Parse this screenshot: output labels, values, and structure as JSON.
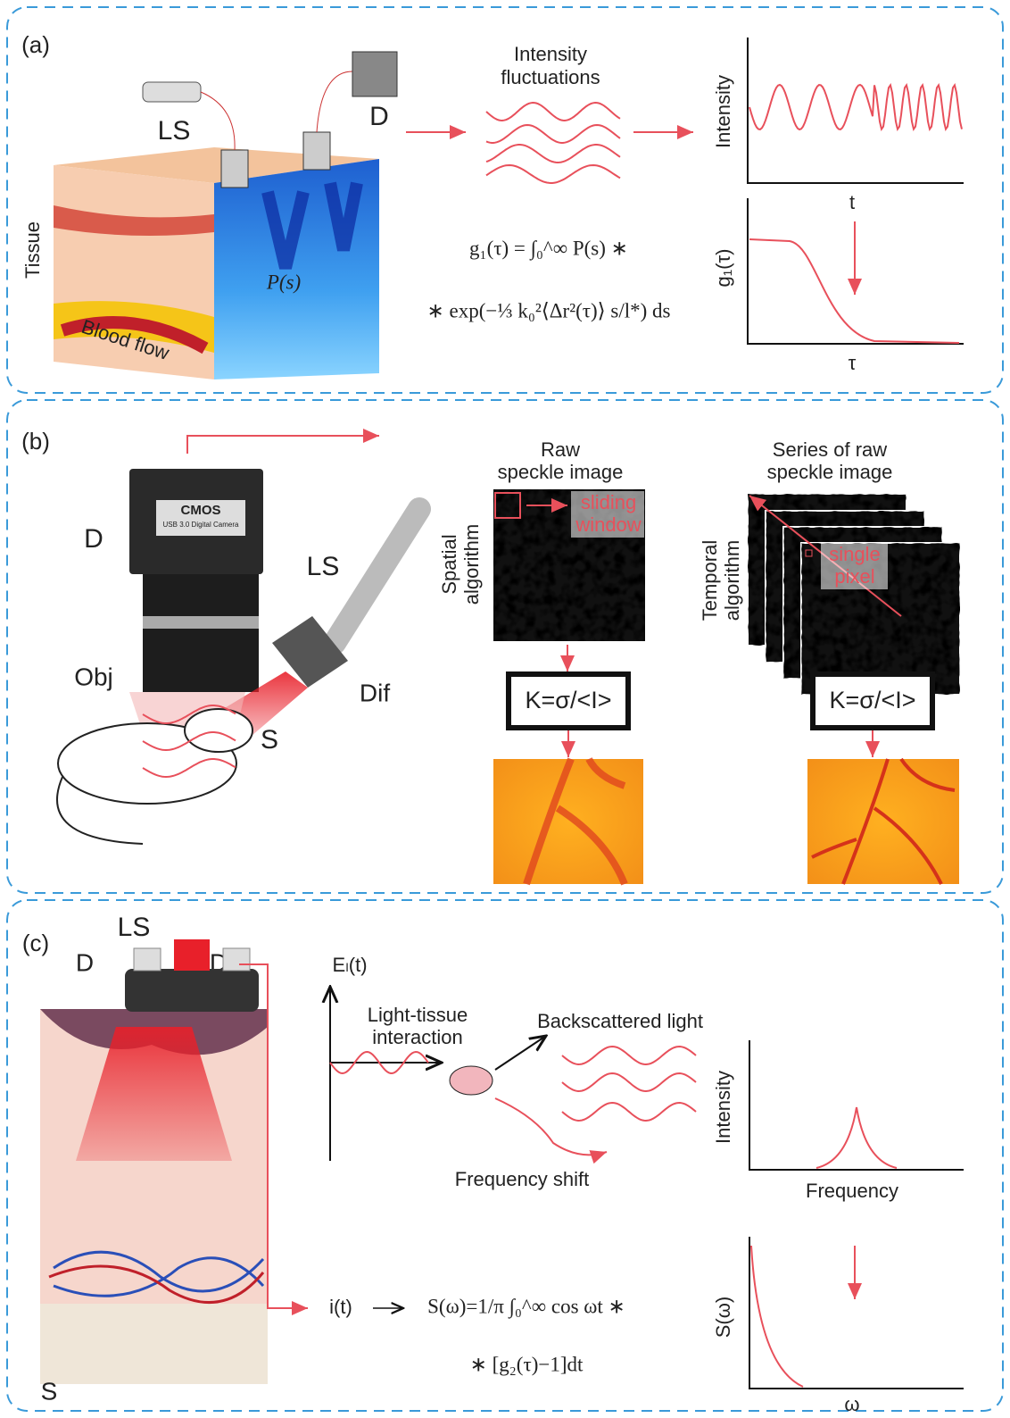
{
  "panels": {
    "a": {
      "label": "(a)",
      "source": "LS",
      "detector": "D",
      "tissue": "Tissue",
      "blood_flow": "Blood flow",
      "distribution": "P(s)",
      "fluctuations_title": [
        "Intensity",
        "fluctuations"
      ],
      "equation": [
        "g₁(τ) = ∫₀^∞ P(s) ∗",
        "∗ exp(−⅓ k₀²⟨Δr²(τ)⟩ s/l*) ds"
      ],
      "intensity_plot": {
        "y_label": "Intensity",
        "x_label": "t"
      },
      "correlation_plot": {
        "y_label": "g₁(τ)",
        "x_label": "τ"
      }
    },
    "b": {
      "label": "(b)",
      "camera_brand": "CMOS",
      "camera_model": "USB 3.0 Digital Camera",
      "detector": "D",
      "source": "LS",
      "objective": "Obj",
      "diffuser": "Dif",
      "sample": "S",
      "spatial": {
        "title": [
          "Raw",
          "speckle image"
        ],
        "algorithm": [
          "Spatial",
          "algorithm"
        ],
        "window": [
          "sliding",
          "window"
        ],
        "formula": "K=σ/<I>"
      },
      "temporal": {
        "title": [
          "Series of raw",
          "speckle image"
        ],
        "algorithm": [
          "Temporal",
          "algorithm"
        ],
        "window": [
          "single",
          "pixel"
        ],
        "formula": "K=σ/<I>"
      }
    },
    "c": {
      "label": "(c)",
      "source": "LS",
      "detectors": [
        "D",
        "D"
      ],
      "sample": "S",
      "field": "Eₗ(t)",
      "interaction": [
        "Light-tissue",
        "interaction"
      ],
      "backscattered": "Backscattered light",
      "shift": "Frequency shift",
      "photocurrent": "i(t)",
      "equation": [
        "S(ω)=1/π ∫₀^∞ cos ωt ∗",
        "∗ [g₂(τ)−1]dt"
      ],
      "spectrum_plot": {
        "y_label": "Intensity",
        "x_label": "Frequency"
      },
      "power_plot": {
        "y_label": "S(ω)",
        "x_label": "ω"
      }
    }
  }
}
